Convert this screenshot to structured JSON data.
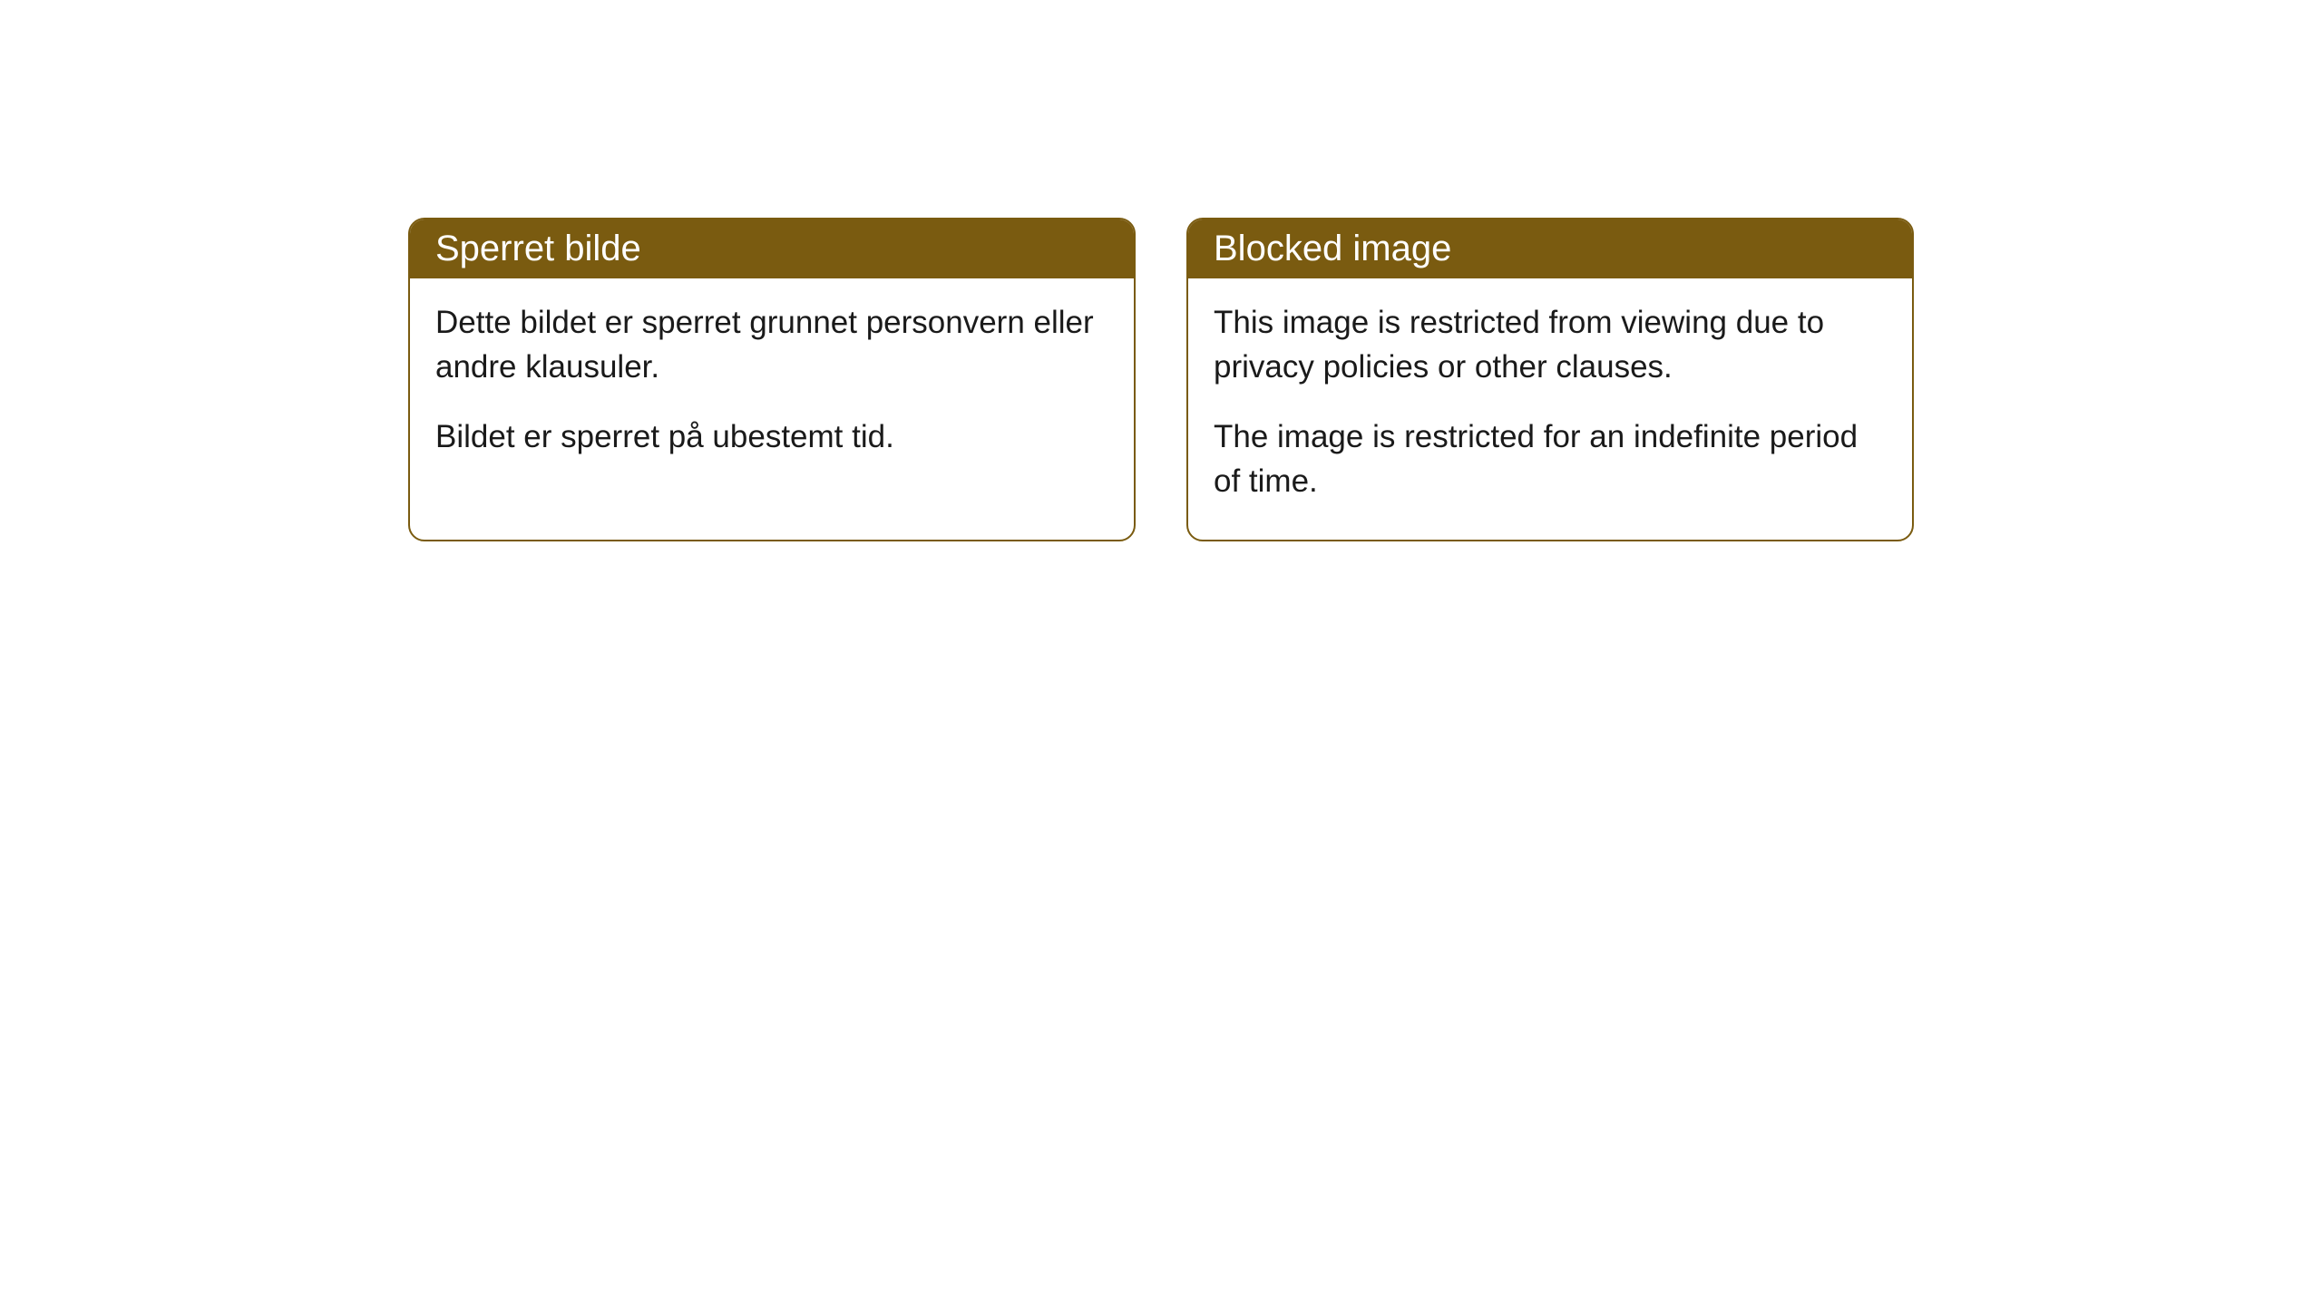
{
  "cards": [
    {
      "title": "Sperret bilde",
      "paragraph1": "Dette bildet er sperret grunnet personvern eller andre klausuler.",
      "paragraph2": "Bildet er sperret på ubestemt tid."
    },
    {
      "title": "Blocked image",
      "paragraph1": "This image is restricted from viewing due to privacy policies or other clauses.",
      "paragraph2": "The image is restricted for an indefinite period of time."
    }
  ],
  "styling": {
    "header_background_color": "#7a5b10",
    "header_text_color": "#ffffff",
    "card_border_color": "#7a5b10",
    "card_background_color": "#ffffff",
    "body_text_color": "#1a1a1a",
    "page_background_color": "#ffffff",
    "border_radius": 18,
    "header_fontsize": 40,
    "body_fontsize": 35,
    "card_gap": 56
  }
}
